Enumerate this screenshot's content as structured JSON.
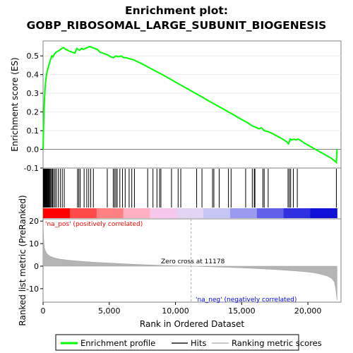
{
  "chart_data": {
    "type": "line",
    "title_line1": "Enrichment plot:",
    "title_line2": "GOBP_RIBOSOMAL_LARGE_SUBUNIT_BIOGENESIS",
    "es_ylabel": "Enrichment score (ES)",
    "es_ylim": [
      -0.1,
      0.58
    ],
    "es_yticks": [
      -0.1,
      0.0,
      0.1,
      0.2,
      0.3,
      0.4,
      0.5
    ],
    "es_ytick_labels": [
      "-0.1",
      "0.0",
      "0.1",
      "0.2",
      "0.3",
      "0.4",
      "0.5"
    ],
    "metric_ylabel": "Ranked list metric (PreRanked)",
    "metric_ylim": [
      -16,
      21
    ],
    "metric_yticks": [
      -10,
      0,
      10,
      20
    ],
    "metric_ytick_labels": [
      "-10",
      "0",
      "10",
      "20"
    ],
    "xlabel": "Rank in Dataset",
    "xlabel_full": "Rank in Ordered Dataset",
    "xlim": [
      0,
      22500
    ],
    "xticks": [
      0,
      5000,
      10000,
      15000,
      20000
    ],
    "xtick_labels": [
      "0",
      "5,000",
      "10,000",
      "15,000",
      "20,000"
    ],
    "zero_cross_rank": 11178,
    "zero_cross_label": "Zero cross at 11178",
    "pos_label": "'na_pos' (positively correlated)",
    "neg_label": "'na_neg' (negatively correlated)",
    "legend": [
      {
        "label": "Enrichment profile",
        "color": "#00ff00"
      },
      {
        "label": "Hits",
        "color": "#555555"
      },
      {
        "label": "Ranking metric scores",
        "color": "#c8c8c8"
      }
    ],
    "es_series": {
      "name": "Enrichment profile",
      "color": "#00ff00",
      "x": [
        0,
        30,
        60,
        100,
        150,
        200,
        260,
        320,
        400,
        480,
        560,
        650,
        750,
        860,
        980,
        1100,
        1250,
        1400,
        1550,
        1700,
        1850,
        2000,
        2200,
        2400,
        2550,
        2650,
        2750,
        2900,
        3050,
        3200,
        3350,
        3500,
        3700,
        3900,
        4100,
        4300,
        4500,
        4700,
        4900,
        5100,
        5300,
        5500,
        5700,
        5900,
        6100,
        6300,
        6500,
        6800,
        7100,
        7400,
        7800,
        8200,
        8600,
        9000,
        9500,
        10000,
        10500,
        11000,
        11500,
        12000,
        12500,
        13000,
        13500,
        14000,
        14500,
        15000,
        15500,
        15800,
        16000,
        16300,
        16500,
        16700,
        17000,
        17300,
        17700,
        18100,
        18400,
        18550,
        18650,
        18800,
        18950,
        19100,
        19250,
        19400,
        19700,
        20200,
        20700,
        21200,
        21700,
        22000,
        22150,
        22200
      ],
      "y": [
        0.0,
        0.1,
        0.18,
        0.26,
        0.32,
        0.37,
        0.4,
        0.42,
        0.44,
        0.46,
        0.48,
        0.5,
        0.495,
        0.51,
        0.52,
        0.525,
        0.53,
        0.54,
        0.545,
        0.535,
        0.53,
        0.525,
        0.52,
        0.515,
        0.54,
        0.535,
        0.53,
        0.54,
        0.535,
        0.54,
        0.545,
        0.55,
        0.545,
        0.54,
        0.535,
        0.52,
        0.515,
        0.51,
        0.505,
        0.495,
        0.49,
        0.5,
        0.495,
        0.5,
        0.49,
        0.49,
        0.485,
        0.48,
        0.47,
        0.46,
        0.445,
        0.43,
        0.415,
        0.4,
        0.38,
        0.36,
        0.34,
        0.32,
        0.3,
        0.28,
        0.26,
        0.24,
        0.22,
        0.2,
        0.18,
        0.16,
        0.14,
        0.125,
        0.12,
        0.11,
        0.115,
        0.1,
        0.095,
        0.085,
        0.07,
        0.055,
        0.04,
        0.03,
        0.055,
        0.05,
        0.055,
        0.05,
        0.055,
        0.05,
        0.035,
        0.015,
        -0.005,
        -0.025,
        -0.045,
        -0.06,
        -0.07,
        0.0
      ]
    },
    "hits": [
      20,
      45,
      70,
      95,
      120,
      150,
      180,
      210,
      240,
      270,
      300,
      340,
      380,
      420,
      470,
      520,
      580,
      650,
      720,
      800,
      900,
      1000,
      1150,
      1300,
      1450,
      1600,
      2600,
      2700,
      2800,
      3100,
      3300,
      3450,
      3600,
      3800,
      4850,
      5300,
      5400,
      5500,
      5600,
      5800,
      6000,
      6200,
      6500,
      6700,
      6900,
      7900,
      8300,
      8600,
      8800,
      8900,
      9700,
      10200,
      10400,
      11600,
      12000,
      12800,
      12900,
      13300,
      14000,
      14200,
      15300,
      15800,
      15950,
      16000,
      16600,
      16700,
      17000,
      18500,
      18600,
      18700,
      18900,
      19200,
      22150
    ],
    "rank_bar_colors": [
      "#ff0000",
      "#ff4a4a",
      "#ff8080",
      "#ffb0c0",
      "#f8c8ec",
      "#e4d4f4",
      "#c6c6f4",
      "#9a9af0",
      "#6060ea",
      "#3030e0",
      "#1010d8"
    ],
    "metric_curve": {
      "x": [
        0,
        50,
        100,
        200,
        300,
        500,
        800,
        1200,
        2000,
        3000,
        4000,
        5000,
        6000,
        7000,
        8000,
        9000,
        10000,
        11178,
        12000,
        13000,
        14000,
        15000,
        16000,
        17000,
        18000,
        19000,
        20000,
        20500,
        21000,
        21500,
        21800,
        22000,
        22100,
        22200
      ],
      "y": [
        20,
        12,
        8,
        6.5,
        5.5,
        4.5,
        3.8,
        3.2,
        2.6,
        2.1,
        1.7,
        1.4,
        1.1,
        0.8,
        0.55,
        0.35,
        0.15,
        0.0,
        -0.15,
        -0.35,
        -0.55,
        -0.8,
        -1.05,
        -1.35,
        -1.7,
        -2.1,
        -2.6,
        -3.0,
        -3.6,
        -4.5,
        -5.5,
        -7,
        -10,
        -15
      ]
    }
  }
}
